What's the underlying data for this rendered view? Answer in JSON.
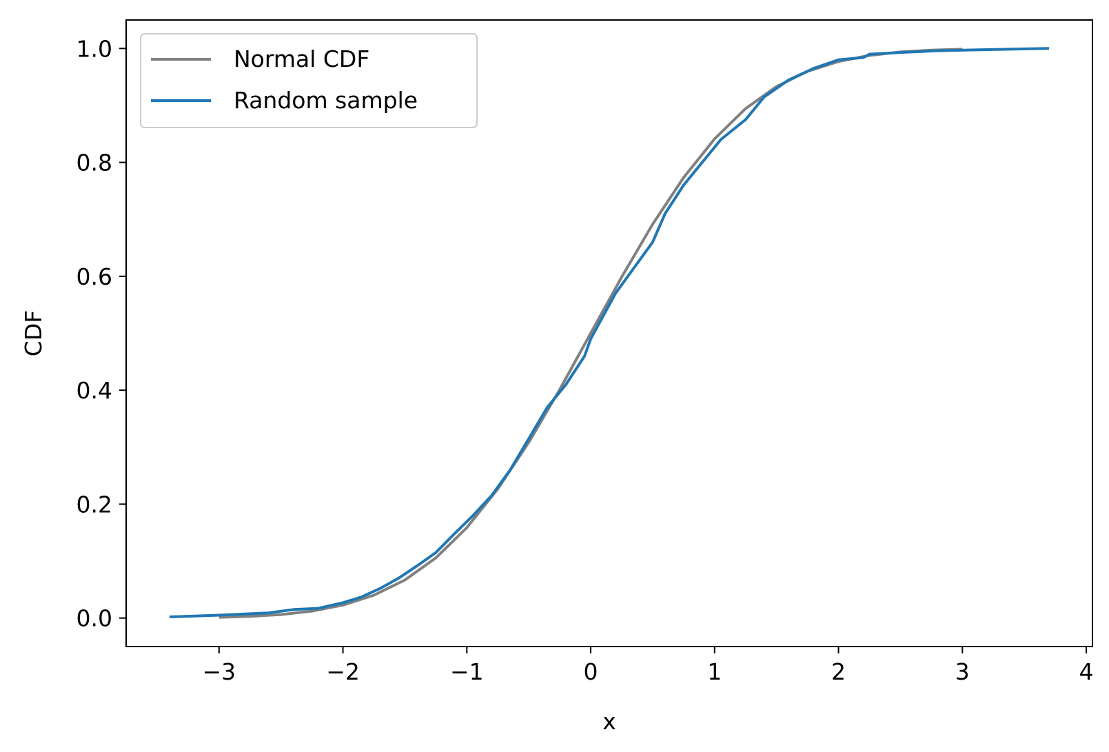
{
  "chart_data": {
    "type": "line",
    "title": "",
    "xlabel": "x",
    "ylabel": "CDF",
    "xlim": [
      -3.75,
      4.05
    ],
    "ylim": [
      -0.05,
      1.05
    ],
    "x_ticks": [
      -3,
      -2,
      -1,
      0,
      1,
      2,
      3,
      4
    ],
    "x_tick_labels": [
      "−3",
      "−2",
      "−1",
      "0",
      "1",
      "2",
      "3",
      "4"
    ],
    "y_ticks": [
      0.0,
      0.2,
      0.4,
      0.6,
      0.8,
      1.0
    ],
    "y_tick_labels": [
      "0.0",
      "0.2",
      "0.4",
      "0.6",
      "0.8",
      "1.0"
    ],
    "grid": false,
    "legend_position": "top-left",
    "series": [
      {
        "name": "Normal CDF",
        "color": "#808080",
        "x": [
          -3.0,
          -2.75,
          -2.5,
          -2.25,
          -2.0,
          -1.75,
          -1.5,
          -1.25,
          -1.0,
          -0.75,
          -0.5,
          -0.25,
          0.0,
          0.25,
          0.5,
          0.75,
          1.0,
          1.25,
          1.5,
          1.75,
          2.0,
          2.25,
          2.5,
          2.75,
          3.0
        ],
        "y": [
          0.0013,
          0.003,
          0.0062,
          0.0122,
          0.0228,
          0.0401,
          0.0668,
          0.1056,
          0.1587,
          0.2266,
          0.3085,
          0.4013,
          0.5,
          0.5987,
          0.6915,
          0.7734,
          0.8413,
          0.8944,
          0.9332,
          0.9599,
          0.9772,
          0.9878,
          0.9938,
          0.997,
          0.9987
        ]
      },
      {
        "name": "Random sample",
        "color": "#1f77b4",
        "x": [
          -3.4,
          -3.0,
          -2.6,
          -2.4,
          -2.2,
          -2.0,
          -1.85,
          -1.7,
          -1.55,
          -1.4,
          -1.25,
          -1.1,
          -0.95,
          -0.8,
          -0.65,
          -0.5,
          -0.35,
          -0.2,
          -0.05,
          0.0,
          0.1,
          0.2,
          0.35,
          0.5,
          0.6,
          0.75,
          0.9,
          1.05,
          1.25,
          1.4,
          1.6,
          1.8,
          2.0,
          2.2,
          2.25,
          2.5,
          2.8,
          3.2,
          3.7
        ],
        "y": [
          0.002,
          0.005,
          0.009,
          0.015,
          0.017,
          0.027,
          0.037,
          0.052,
          0.07,
          0.092,
          0.115,
          0.148,
          0.18,
          0.215,
          0.26,
          0.315,
          0.37,
          0.41,
          0.46,
          0.49,
          0.53,
          0.57,
          0.615,
          0.66,
          0.71,
          0.76,
          0.8,
          0.84,
          0.875,
          0.915,
          0.945,
          0.965,
          0.98,
          0.984,
          0.99,
          0.993,
          0.996,
          0.998,
          1.0
        ]
      }
    ]
  }
}
